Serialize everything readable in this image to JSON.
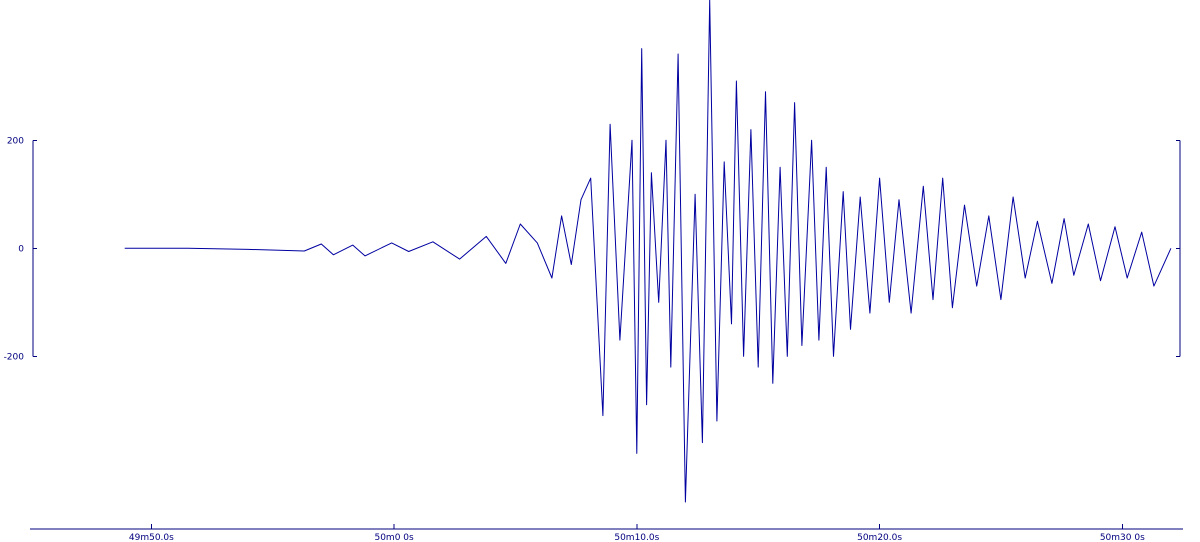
{
  "chart_data": {
    "type": "line",
    "title": "",
    "xlabel": "",
    "ylabel": "",
    "grid": false,
    "legend": "none",
    "colors": {
      "axis": "#00007f",
      "trace": "#0000a0"
    },
    "x_ticks": [
      {
        "label": "49m50.0s",
        "seconds": 0
      },
      {
        "label": "50m0 0s",
        "seconds": 10
      },
      {
        "label": "50m10.0s",
        "seconds": 20
      },
      {
        "label": "50m20.0s",
        "seconds": 30
      },
      {
        "label": "50m30 0s",
        "seconds": 40
      }
    ],
    "x_range_seconds": [
      -5,
      42.5
    ],
    "y_ticks": [
      {
        "label": "200",
        "value": 200
      },
      {
        "label": "0",
        "value": 0
      },
      {
        "label": "-200",
        "value": -200
      }
    ],
    "ylim": [
      -520,
      460
    ],
    "series": [
      {
        "seconds": [
          -1.1,
          1.5,
          4.0,
          6.3,
          7.0,
          7.5,
          8.3,
          8.8,
          9.9,
          10.6,
          11.6,
          12.7,
          13.8,
          14.6,
          15.2,
          15.9,
          16.5,
          16.9,
          17.3,
          17.7,
          18.1,
          18.6,
          18.9,
          19.3,
          19.8,
          20.0,
          20.2,
          20.4,
          20.6,
          20.9,
          21.2,
          21.4,
          21.7,
          22.0,
          22.4,
          22.7,
          23.0,
          23.3,
          23.6,
          23.9,
          24.1,
          24.4,
          24.7,
          25.0,
          25.3,
          25.6,
          25.9,
          26.2,
          26.5,
          26.8,
          27.2,
          27.5,
          27.8,
          28.1,
          28.5,
          28.8,
          29.2,
          29.6,
          30.0,
          30.4,
          30.8,
          31.3,
          31.8,
          32.2,
          32.6,
          33.0,
          33.5,
          34.0,
          34.5,
          35.0,
          35.5,
          36.0,
          36.5,
          37.1,
          37.6,
          38.0,
          38.6,
          39.1,
          39.7,
          40.2,
          40.8,
          41.3,
          42.0
        ],
        "values": [
          0,
          0,
          -2,
          -5,
          8,
          -12,
          6,
          -14,
          10,
          -6,
          12,
          -20,
          22,
          -28,
          45,
          10,
          -55,
          60,
          -30,
          90,
          130,
          -310,
          230,
          -170,
          200,
          -380,
          370,
          -290,
          140,
          -100,
          200,
          -220,
          360,
          -470,
          100,
          -360,
          460,
          -320,
          160,
          -140,
          310,
          -200,
          220,
          -220,
          290,
          -250,
          150,
          -200,
          270,
          -180,
          200,
          -170,
          150,
          -200,
          105,
          -150,
          95,
          -120,
          130,
          -100,
          90,
          -120,
          115,
          -95,
          130,
          -110,
          80,
          -70,
          60,
          -95,
          95,
          -55,
          50,
          -65,
          55,
          -50,
          45,
          -60,
          40,
          -55,
          30,
          -70,
          0
        ]
      }
    ]
  }
}
